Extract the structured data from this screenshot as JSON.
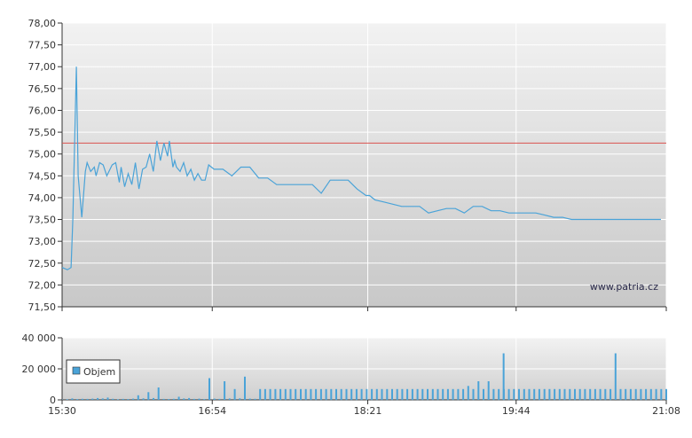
{
  "chart_data": [
    {
      "type": "line",
      "title": "",
      "xlabel": "",
      "ylabel": "",
      "ylim": [
        71.5,
        78.0
      ],
      "y_ticks": [
        "71,50",
        "72,00",
        "72,50",
        "73,00",
        "73,50",
        "74,00",
        "74,50",
        "75,00",
        "75,50",
        "76,00",
        "76,50",
        "77,00",
        "77,50",
        "78,00"
      ],
      "grid": true,
      "reference_line": {
        "value": 75.25,
        "color": "#d9534f"
      },
      "series_color": "#4aa3d8",
      "series": [
        {
          "x_minutes": [
            0,
            3,
            5,
            6,
            8,
            9,
            11,
            13,
            14,
            16,
            18,
            19,
            21,
            23,
            25,
            28,
            30,
            32,
            33,
            35,
            37,
            39,
            41,
            43,
            45,
            47,
            49,
            51,
            53,
            55,
            57,
            59,
            60,
            62,
            63,
            64,
            66,
            68,
            70,
            72,
            74,
            76,
            78,
            80,
            82,
            85,
            90,
            95,
            100,
            105,
            110,
            115,
            120,
            125,
            130,
            135,
            140,
            145,
            150,
            155,
            160,
            165,
            170,
            172,
            175,
            180,
            190,
            195,
            200,
            205,
            210,
            215,
            220,
            225,
            230,
            235,
            240,
            245,
            250,
            255,
            260,
            265,
            270,
            275,
            280,
            285,
            290,
            295,
            298,
            300,
            305,
            310,
            315,
            320,
            325,
            330,
            335
          ],
          "values": [
            72.4,
            72.35,
            72.4,
            73.5,
            77.0,
            74.5,
            73.55,
            74.6,
            74.8,
            74.6,
            74.7,
            74.5,
            74.8,
            74.75,
            74.5,
            74.75,
            74.8,
            74.35,
            74.7,
            74.25,
            74.55,
            74.3,
            74.8,
            74.2,
            74.65,
            74.7,
            75.0,
            74.6,
            75.3,
            74.85,
            75.25,
            74.95,
            75.3,
            74.7,
            74.85,
            74.7,
            74.6,
            74.8,
            74.5,
            74.65,
            74.4,
            74.55,
            74.4,
            74.4,
            74.75,
            74.65,
            74.65,
            74.5,
            74.7,
            74.7,
            74.45,
            74.45,
            74.3,
            74.3,
            74.3,
            74.3,
            74.3,
            74.1,
            74.4,
            74.4,
            74.4,
            74.2,
            74.05,
            74.05,
            73.95,
            73.9,
            73.8,
            73.8,
            73.8,
            73.65,
            73.7,
            73.75,
            73.75,
            73.65,
            73.8,
            73.8,
            73.7,
            73.7,
            73.65,
            73.65,
            73.65,
            73.65,
            73.6,
            73.55,
            73.55,
            73.5,
            73.5,
            73.5,
            73.5,
            73.5,
            73.5,
            73.5,
            73.5,
            73.5,
            73.5,
            73.5,
            73.5
          ]
        }
      ]
    },
    {
      "type": "bar",
      "title": "",
      "ylim": [
        0,
        40000
      ],
      "y_ticks": [
        "0",
        "20 000",
        "40 000"
      ],
      "x_ticks": [
        "15:30",
        "16:54",
        "18:21",
        "19:44",
        "21:08"
      ],
      "legend": {
        "label": "Objem",
        "placement": "bottom-left"
      },
      "series_color": "#4aa3d8",
      "spike": {
        "minute": 247,
        "value": 30000
      },
      "bar_values": [
        300,
        400,
        900,
        500,
        700,
        600,
        800,
        1200,
        900,
        1500,
        700,
        400,
        600,
        500,
        800,
        3000,
        1000,
        5000,
        1200,
        8000,
        600,
        500,
        700,
        2000,
        900,
        1200,
        600,
        800,
        500,
        14000,
        800,
        600,
        12000,
        900,
        7000,
        1000,
        15000,
        800,
        700,
        7000,
        7000,
        7000,
        7000,
        7000,
        7000,
        7000,
        7000,
        7000,
        7000,
        7000,
        7000,
        7000,
        7000,
        7000,
        7000,
        7000,
        7000,
        7000,
        7000,
        7000,
        7000,
        7000,
        7000,
        7000,
        7000,
        7000,
        7000,
        7000,
        7000,
        7000,
        7000,
        7000,
        7000,
        7000,
        7000,
        7000,
        7000,
        7000,
        7000,
        7000,
        9000,
        7000,
        12000,
        7000,
        12000,
        7000,
        7000,
        7000,
        7000,
        7000,
        7000,
        7000,
        7000,
        7000,
        7000,
        7000,
        7000,
        7000,
        7000,
        7000,
        7000,
        7000,
        7000,
        7000,
        7000,
        7000,
        7000,
        7000,
        7000,
        30000,
        7000,
        7000,
        7000,
        7000,
        7000,
        7000,
        7000,
        7000,
        7000,
        7000
      ]
    }
  ],
  "watermark": "www.patria.cz"
}
